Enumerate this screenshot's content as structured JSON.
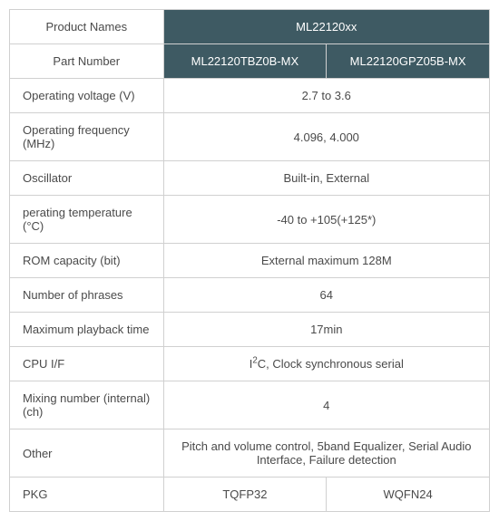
{
  "header": {
    "product_names_label": "Product Names",
    "product_names_value": "ML22120xx",
    "part_number_label": "Part Number",
    "part1": "ML22120TBZ0B-MX",
    "part2": "ML22120GPZ05B-MX"
  },
  "rows": {
    "voltage_label": "Operating voltage (V)",
    "voltage_value": "2.7 to 3.6",
    "freq_label": "Operating frequency (MHz)",
    "freq_value": "4.096, 4.000",
    "osc_label": "Oscillator",
    "osc_value": "Built-in, External",
    "temp_label": "perating temperature (°C)",
    "temp_value": "-40 to +105(+125*)",
    "rom_label": "ROM capacity (bit)",
    "rom_value": "External maximum 128M",
    "phrases_label": "Number of phrases",
    "phrases_value": "64",
    "playback_label": "Maximum playback time",
    "playback_value": "17min",
    "cpu_label": "CPU I/F",
    "mixing_label": "Mixing number (internal) (ch)",
    "mixing_value": "4",
    "other_label": "Other",
    "other_value": "Pitch and volume control, 5band Equalizer, Serial Audio Interface, Failure detection",
    "pkg_label": "PKG",
    "pkg1": "TQFP32",
    "pkg2": "WQFN24"
  },
  "colors": {
    "header_bg": "#3e5a63",
    "header_text": "#ffffff",
    "border": "#d0d0d0",
    "text": "#4a4a4a",
    "bg": "#ffffff"
  }
}
